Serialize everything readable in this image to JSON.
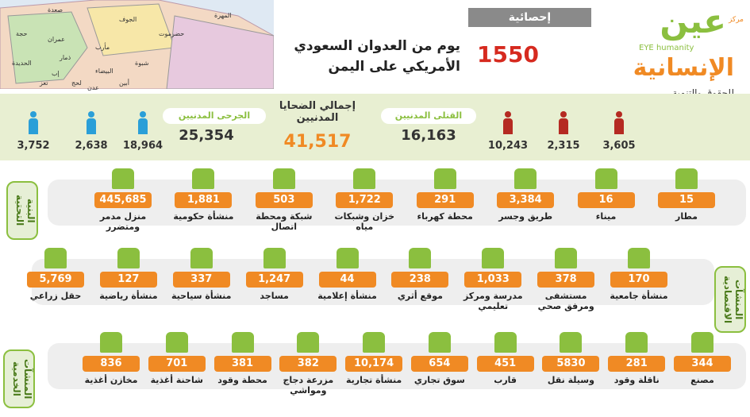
{
  "header": {
    "badge": "إحصائية",
    "days": "1550",
    "title_lines": [
      "يوم من العدوان السعودي",
      "الأمريكي على اليمن"
    ]
  },
  "logo": {
    "word1": "عين",
    "word2": "الإنسانية",
    "english": [
      "EYE",
      "humanity"
    ],
    "tag": "مركز",
    "subtitle": "للحقوق والتنمية"
  },
  "map": {
    "labels": [
      "صعدة",
      "الجوف",
      "المهرة",
      "حضرموت",
      "حجة",
      "عمران",
      "مأرب",
      "شبوة",
      "الحديدة",
      "ذمار",
      "البيضاء",
      "إب",
      "أبين",
      "تعز",
      "لحج",
      "عدن"
    ]
  },
  "casualties": {
    "total": {
      "label": "إجمالي الضحايا المدنيين",
      "value": "41,517"
    },
    "killed": {
      "label": "القتلى المدنيين",
      "value": "16,163",
      "breakdown": [
        "10,243",
        "2,315",
        "3,605"
      ]
    },
    "injured": {
      "label": "الجرحى المدنيين",
      "value": "25,354",
      "breakdown": [
        "18,964",
        "2,638",
        "3,752"
      ]
    }
  },
  "sections": [
    {
      "title": "البنية التحتية",
      "items": [
        {
          "value": "15",
          "label": "مطار"
        },
        {
          "value": "16",
          "label": "ميناء"
        },
        {
          "value": "3,384",
          "label": "طريق وجسر"
        },
        {
          "value": "291",
          "label": "محطة كهرباء"
        },
        {
          "value": "1,722",
          "label": "خزان وشبكات مياه"
        },
        {
          "value": "503",
          "label": "شبكة ومحطة اتصال"
        },
        {
          "value": "1,881",
          "label": "منشأة حكومية"
        },
        {
          "value": "445,685",
          "label": "منزل مدمر ومتضرر"
        }
      ]
    },
    {
      "title": "المنشآت الاقتصادية",
      "items": [
        {
          "value": "170",
          "label": "منشأة جامعية"
        },
        {
          "value": "378",
          "label": "مستشفى ومرفق صحي"
        },
        {
          "value": "1,033",
          "label": "مدرسة ومركز تعليمي"
        },
        {
          "value": "238",
          "label": "موقع أثري"
        },
        {
          "value": "44",
          "label": "منشأة إعلامية"
        },
        {
          "value": "1,247",
          "label": "مساجد"
        },
        {
          "value": "337",
          "label": "منشأة سياحية"
        },
        {
          "value": "127",
          "label": "منشأة رياضية"
        },
        {
          "value": "5,769",
          "label": "حقل زراعي"
        }
      ]
    },
    {
      "title": "المنشآت الخدمية",
      "items": [
        {
          "value": "344",
          "label": "مصنع"
        },
        {
          "value": "281",
          "label": "ناقلة وقود"
        },
        {
          "value": "5830",
          "label": "وسيلة نقل"
        },
        {
          "value": "451",
          "label": "قارب"
        },
        {
          "value": "654",
          "label": "سوق تجاري"
        },
        {
          "value": "10,174",
          "label": "منشأة تجارية"
        },
        {
          "value": "382",
          "label": "مزرعة دجاج ومواشي"
        },
        {
          "value": "381",
          "label": "محطة وقود"
        },
        {
          "value": "701",
          "label": "شاحنة أغذية"
        },
        {
          "value": "836",
          "label": "مخازن أغذية"
        }
      ]
    }
  ]
}
